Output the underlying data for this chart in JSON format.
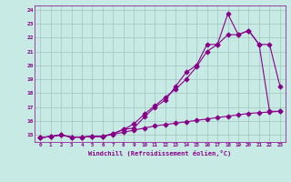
{
  "background_color": "#c8eae4",
  "grid_color": "#a0c4c0",
  "line_color": "#880088",
  "xlabel": "Windchill (Refroidissement éolien,°C)",
  "xlim": [
    -0.5,
    23.5
  ],
  "ylim": [
    14.5,
    24.3
  ],
  "xticks": [
    0,
    1,
    2,
    3,
    4,
    5,
    6,
    7,
    8,
    9,
    10,
    11,
    12,
    13,
    14,
    15,
    16,
    17,
    18,
    19,
    20,
    21,
    22,
    23
  ],
  "yticks": [
    15,
    16,
    17,
    18,
    19,
    20,
    21,
    22,
    23,
    24
  ],
  "line1_x": [
    0,
    1,
    2,
    3,
    4,
    5,
    6,
    7,
    8,
    9,
    10,
    11,
    12,
    13,
    14,
    15,
    16,
    17,
    18,
    19,
    20,
    21,
    22,
    23
  ],
  "line1_y": [
    14.8,
    14.9,
    15.0,
    14.85,
    14.85,
    14.9,
    14.9,
    15.1,
    15.4,
    15.5,
    16.3,
    17.0,
    17.5,
    18.5,
    19.5,
    20.0,
    21.5,
    21.5,
    23.7,
    22.2,
    22.5,
    21.5,
    16.7,
    16.7
  ],
  "line2_x": [
    0,
    1,
    2,
    3,
    4,
    5,
    6,
    7,
    8,
    9,
    10,
    11,
    12,
    13,
    14,
    15,
    16,
    17,
    18,
    19,
    20,
    21,
    22,
    23
  ],
  "line2_y": [
    14.8,
    14.9,
    15.0,
    14.85,
    14.85,
    14.9,
    14.9,
    15.1,
    15.4,
    15.8,
    16.5,
    17.1,
    17.7,
    18.3,
    19.0,
    19.9,
    21.0,
    21.5,
    22.2,
    22.2,
    22.5,
    21.5,
    21.5,
    18.5
  ],
  "line3_x": [
    0,
    1,
    2,
    3,
    4,
    5,
    6,
    7,
    8,
    9,
    10,
    11,
    12,
    13,
    14,
    15,
    16,
    17,
    18,
    19,
    20,
    21,
    22,
    23
  ],
  "line3_y": [
    14.8,
    14.9,
    15.0,
    14.85,
    14.85,
    14.9,
    14.9,
    15.05,
    15.2,
    15.35,
    15.5,
    15.65,
    15.75,
    15.85,
    15.95,
    16.05,
    16.15,
    16.25,
    16.35,
    16.45,
    16.55,
    16.6,
    16.65,
    16.7
  ]
}
